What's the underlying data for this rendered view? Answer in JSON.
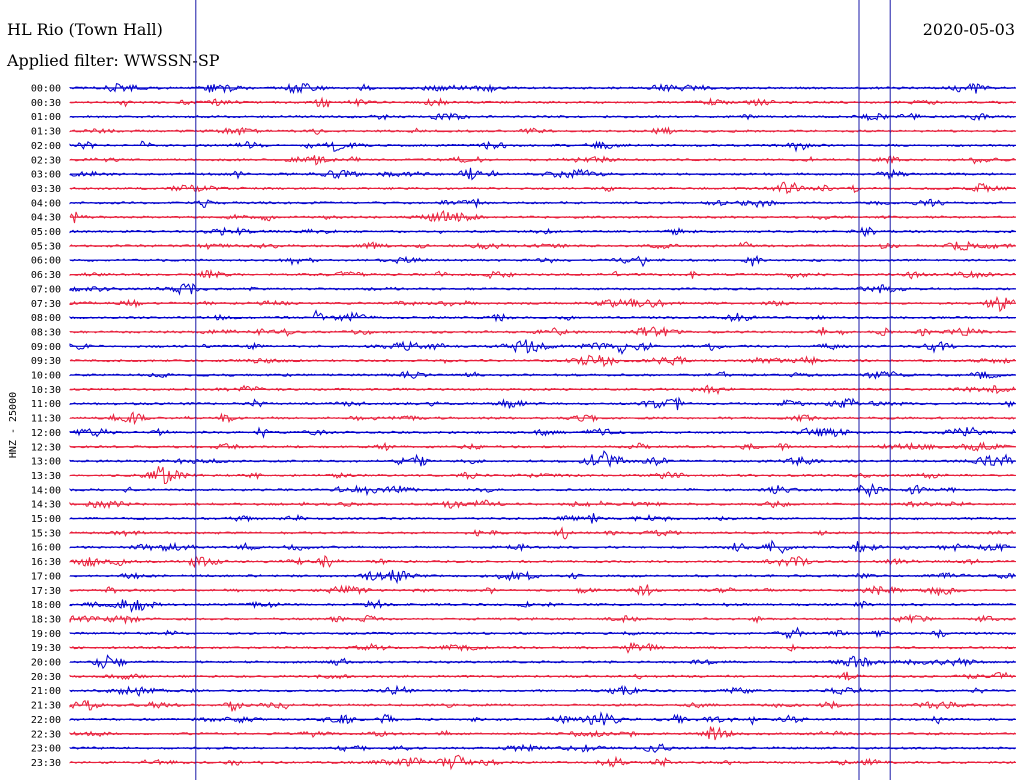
{
  "header": {
    "title": "HL Rio (Town Hall)",
    "filter": "Applied filter: WWSSN-SP",
    "date": "2020-05-03"
  },
  "chart_data": {
    "type": "line",
    "title": "HL Rio (Town Hall)",
    "subtitle": "Applied filter: WWSSN-SP",
    "date": "2020-05-03",
    "ylabel": "HNZ - 25000",
    "row_labels": [
      "00:00",
      "00:30",
      "01:00",
      "01:30",
      "02:00",
      "02:30",
      "03:00",
      "03:30",
      "04:00",
      "04:30",
      "05:00",
      "05:30",
      "06:00",
      "06:30",
      "07:00",
      "07:30",
      "08:00",
      "08:30",
      "09:00",
      "09:30",
      "10:00",
      "10:30",
      "11:00",
      "11:30",
      "12:00",
      "12:30",
      "13:00",
      "13:30",
      "14:00",
      "14:30",
      "15:00",
      "15:30",
      "16:00",
      "16:30",
      "17:00",
      "17:30",
      "18:00",
      "18:30",
      "19:00",
      "19:30",
      "20:00",
      "20:30",
      "21:00",
      "21:30",
      "22:00",
      "22:30",
      "23:00",
      "23:30"
    ],
    "row_colors": [
      "#0000cc",
      "#e8203c"
    ],
    "marker_color": "#1a1aa8",
    "time_markers_fraction": [
      0.133,
      0.834,
      0.867
    ],
    "grid": false
  }
}
